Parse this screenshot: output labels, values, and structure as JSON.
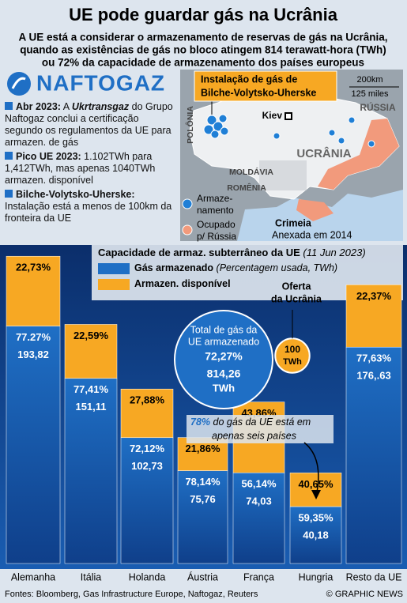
{
  "header": {
    "title": "UE pode guardar gás na Ucrânia",
    "subtitle": [
      "A UE está a considerar o armazenamento de reservas de gás na Ucrânia,",
      "quando as existências de gás no bloco atingem 814 terawatt-hora (TWh)",
      "ou 72% da capacidade de armazenamento dos países europeus"
    ]
  },
  "logo": "NAFTOGAZ",
  "bullets": [
    {
      "head": "Abr 2023:",
      "before": " A ",
      "company": "Ukrtransgaz",
      "text": " do Grupo Naftogaz conclui a certificação segundo os regulamentos da UE para armazen. de gás"
    },
    {
      "head": "Pico UE 2023:",
      "text": " 1.102TWh para 1,412TWh, mas apenas 1040TWh armazen. disponível"
    },
    {
      "head": "Bilche-Volytsko-Uherske:",
      "text": " Instalação está a menos de 100km da fronteira da UE"
    }
  ],
  "map": {
    "callout": [
      "Instalação de gás de",
      "Bilche-Volytsko-Uherske"
    ],
    "scale_km": "200km",
    "scale_miles": "125 miles",
    "countries": [
      "POLÔNIA",
      "RÚSSIA",
      "UCRÂNIA",
      "MOLDÁVIA",
      "ROMÊNIA"
    ],
    "city": "Kiev",
    "legend_storage": [
      "Armaze-",
      "namento"
    ],
    "legend_occupied": [
      "Ocupado",
      "p/ Rússia"
    ],
    "crimea": "Crimeia",
    "crimea_note": "Anexada em 2014"
  },
  "chart_data": {
    "type": "bar",
    "stacked": true,
    "title": "Capacidade de armaz. subterrâneo da UE",
    "date": "(11 Jun 2023)",
    "categories": [
      "Alemanha",
      "Itália",
      "Holanda",
      "Áustria",
      "França",
      "Hungria",
      "Resto da UE"
    ],
    "series": [
      {
        "name": "Gás armazenado",
        "note": "(Percentagem usada, TWh)",
        "color": "#1f6fc5",
        "values": [
          77.27,
          77.41,
          72.12,
          78.14,
          56.14,
          59.35,
          77.63
        ],
        "value_labels": [
          "77.27%",
          "77,41%",
          "72,12%",
          "78,14%",
          "56,14%",
          "59,35%",
          "77,63%"
        ],
        "twh": [
          193.82,
          151.11,
          102.73,
          75.76,
          74.03,
          40.18,
          176.63
        ],
        "twh_labels": [
          "193,82",
          "151,11",
          "102,73",
          "75,76",
          "74,03",
          "40,18",
          "176,.63"
        ]
      },
      {
        "name": "Armazen. disponível",
        "color": "#f7a823",
        "values": [
          22.73,
          22.59,
          27.88,
          21.86,
          43.86,
          40.65,
          22.37
        ],
        "value_labels": [
          "22,73%",
          "22,59%",
          "27,88%",
          "21,86%",
          "43,86%",
          "40,65%",
          "22,37%"
        ]
      }
    ],
    "total": {
      "label": [
        "Total de gás da",
        "UE armazenado"
      ],
      "percent": 72.27,
      "percent_label": "72,27%",
      "value": 814.26,
      "value_label": "814,26",
      "unit": "TWh"
    },
    "ukraine": {
      "label": [
        "Oferta",
        "da Ucrânia"
      ],
      "value": 100,
      "unit": "TWh"
    },
    "annotation": {
      "highlight": "78%",
      "text": [
        " do gás da UE está em",
        "apenas seis países"
      ]
    }
  },
  "footer": {
    "sources": "Fontes: Bloomberg, Gas Infrastructure Europe, Naftogaz, Reuters",
    "credit": "© GRAPHIC NEWS"
  }
}
